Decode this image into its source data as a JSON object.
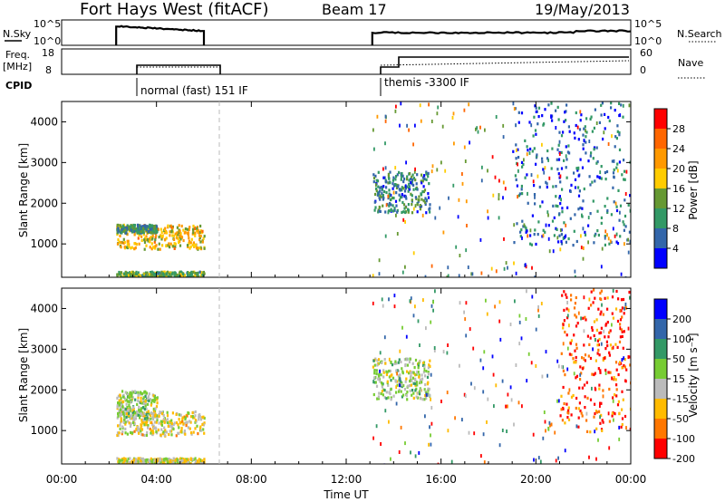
{
  "header": {
    "station": "Fort Hays West (fitACF)",
    "beam": "Beam 17",
    "date": "19/May/2013"
  },
  "strip_panels": {
    "nsky_label": "N.Sky",
    "nsky_ticks": [
      "10^5",
      "10^0"
    ],
    "nsearch_label": "N.Search",
    "nsearch_ticks": [
      "10^5",
      "10^0"
    ],
    "freq_label_line1": "Freq.",
    "freq_label_line2": "[MHz]",
    "freq_ticks": [
      "18",
      "8"
    ],
    "nave_label": "Nave",
    "nave_ticks": [
      "60",
      "0"
    ],
    "cpid_label": "CPID",
    "cpid_modes": [
      {
        "label": "normal (fast) 151 IF",
        "start_hour": 2.3
      },
      {
        "label": "themis -3300 IF",
        "start_hour": 13.1
      }
    ]
  },
  "power_panel": {
    "ylabel": "Slant Range [km]",
    "yticks": [
      "4000",
      "3000",
      "2000",
      "1000"
    ],
    "colorbar_label": "Power [dB]",
    "colorbar_ticks": [
      "28",
      "24",
      "20",
      "16",
      "12",
      "8",
      "4"
    ]
  },
  "velocity_panel": {
    "ylabel": "Slant Range [km]",
    "yticks": [
      "4000",
      "3000",
      "2000",
      "1000"
    ],
    "colorbar_label": "Velocity [m s⁻¹]",
    "colorbar_ticks": [
      "200",
      "100",
      "50",
      "15",
      "-15",
      "-50",
      "-100",
      "-200"
    ]
  },
  "xaxis": {
    "xlabel": "Time UT",
    "ticks": [
      "00:00",
      "04:00",
      "08:00",
      "12:00",
      "16:00",
      "20:00",
      "00:00"
    ]
  },
  "colors": {
    "power_scale": [
      "#ff0000",
      "#ff6600",
      "#ff9900",
      "#ffcc00",
      "#669933",
      "#339966",
      "#3366aa",
      "#0000ff"
    ],
    "velocity_scale": [
      "#0000ff",
      "#3366aa",
      "#339966",
      "#77cc33",
      "#bbbbbb",
      "#ffbb00",
      "#ff7700",
      "#ff0000"
    ]
  },
  "chart_data": {
    "type": "heatmap",
    "title": "Fort Hays West (fitACF) Beam 17 19/May/2013",
    "xlabel": "Time UT",
    "xlim_hours": [
      0,
      24
    ],
    "ylim_km": [
      180,
      4500
    ],
    "data_gap_hours": [
      6.0,
      13.1
    ],
    "panels": [
      {
        "name": "Power [dB]",
        "clim": [
          0,
          30
        ],
        "regions": [
          {
            "t": [
              2.3,
              6.0
            ],
            "r": [
              900,
              1500
            ],
            "level": 18
          },
          {
            "t": [
              2.3,
              4.0
            ],
            "r": [
              1300,
              1500
            ],
            "level": 10
          },
          {
            "t": [
              2.3,
              6.0
            ],
            "r": [
              200,
              350
            ],
            "level": 12
          },
          {
            "t": [
              13.1,
              15.5
            ],
            "r": [
              1800,
              2800
            ],
            "level": 8
          },
          {
            "t": [
              19.0,
              24.0
            ],
            "r": [
              1000,
              4500
            ],
            "level": 6
          }
        ]
      },
      {
        "name": "Velocity [m s⁻¹]",
        "clim": [
          -200,
          200
        ],
        "regions": [
          {
            "t": [
              2.3,
              6.0
            ],
            "r": [
              900,
              1500
            ],
            "level": -40
          },
          {
            "t": [
              2.3,
              4.0
            ],
            "r": [
              1300,
              2000
            ],
            "level": 0
          },
          {
            "t": [
              2.3,
              6.0
            ],
            "r": [
              200,
              350
            ],
            "level": -30
          },
          {
            "t": [
              13.1,
              15.5
            ],
            "r": [
              1800,
              2800
            ],
            "level": 0
          },
          {
            "t": [
              21.0,
              24.0
            ],
            "r": [
              1000,
              4500
            ],
            "level": -150
          }
        ]
      }
    ]
  }
}
